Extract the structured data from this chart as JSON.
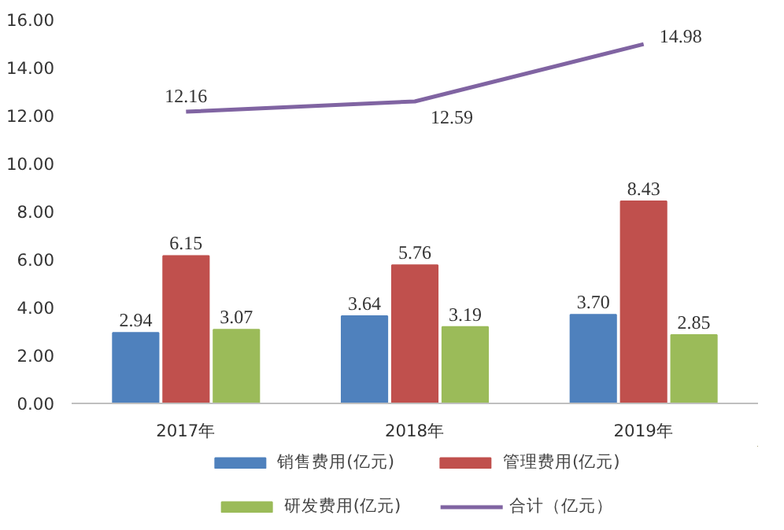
{
  "chart_data": {
    "type": "bar",
    "categories": [
      "2017年",
      "2018年",
      "2019年"
    ],
    "series": [
      {
        "name": "销售费用(亿元)",
        "color": "#4f81bd",
        "values": [
          2.94,
          3.64,
          3.7
        ],
        "value_labels": [
          "2.94",
          "3.64",
          "3.70"
        ]
      },
      {
        "name": "管理费用(亿元)",
        "color": "#c0504d",
        "values": [
          6.15,
          5.76,
          8.43
        ],
        "value_labels": [
          "6.15",
          "5.76",
          "8.43"
        ]
      },
      {
        "name": "研发费用(亿元)",
        "color": "#9bbb59",
        "values": [
          3.07,
          3.19,
          2.85
        ],
        "value_labels": [
          "3.07",
          "3.19",
          "2.85"
        ]
      },
      {
        "name": "合计（亿元）",
        "color": "#8064a2",
        "type": "line",
        "values": [
          12.16,
          12.59,
          14.98
        ],
        "value_labels": [
          "12.16",
          "12.59",
          "14.98"
        ]
      }
    ],
    "ylim": [
      0,
      16
    ],
    "yticks": [
      {
        "value": 0,
        "label": "0.00"
      },
      {
        "value": 2,
        "label": "2.00"
      },
      {
        "value": 4,
        "label": "4.00"
      },
      {
        "value": 6,
        "label": "6.00"
      },
      {
        "value": 8,
        "label": "8.00"
      },
      {
        "value": 10,
        "label": "10.00"
      },
      {
        "value": 12,
        "label": "12.00"
      },
      {
        "value": 14,
        "label": "14.00"
      },
      {
        "value": 16,
        "label": "16.00"
      }
    ],
    "grid": false,
    "legend": "bottom",
    "marker": "none",
    "line_style": "solid"
  }
}
